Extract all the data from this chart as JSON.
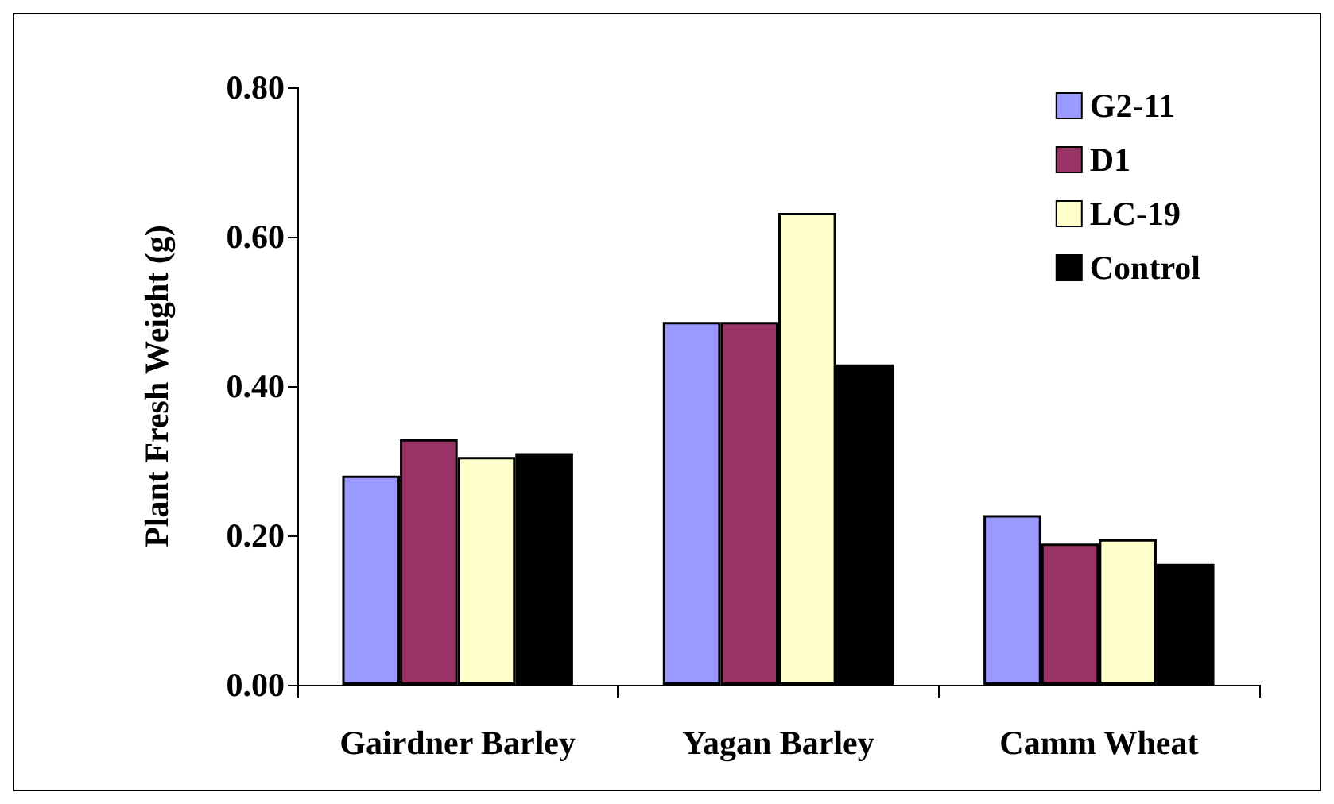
{
  "chart_data": {
    "type": "bar",
    "ylabel": "Plant Fresh Weight (g)",
    "categories": [
      "Gairdner Barley",
      "Yagan Barley",
      "Camm Wheat"
    ],
    "series": [
      {
        "name": "G2-11",
        "color": "#9999ff",
        "values": [
          0.28,
          0.486,
          0.227
        ]
      },
      {
        "name": "D1",
        "color": "#993366",
        "values": [
          0.329,
          0.486,
          0.189
        ]
      },
      {
        "name": "LC-19",
        "color": "#ffffcc",
        "values": [
          0.305,
          0.632,
          0.195
        ]
      },
      {
        "name": "Control",
        "color": "#000000",
        "values": [
          0.31,
          0.429,
          0.162
        ]
      }
    ],
    "ylim": [
      0,
      0.8
    ],
    "yticks": [
      {
        "value": 0,
        "label": "0.00"
      },
      {
        "value": 0.2,
        "label": "0.20"
      },
      {
        "value": 0.4,
        "label": "0.40"
      },
      {
        "value": 0.6,
        "label": "0.60"
      },
      {
        "value": 0.8,
        "label": "0.80"
      }
    ],
    "grid": false,
    "legend": "top right"
  }
}
